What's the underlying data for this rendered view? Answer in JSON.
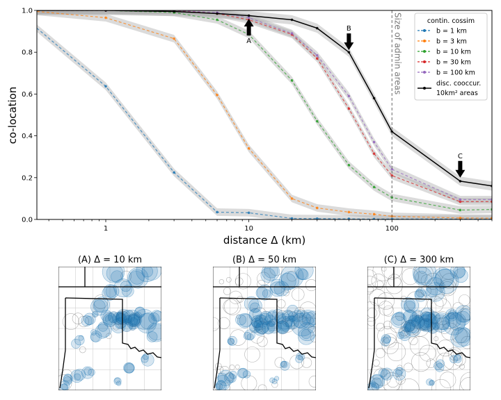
{
  "chart_data": [
    {
      "type": "line",
      "xlabel": "distance Δ (km)",
      "ylabel": "co-location",
      "x_scale": "log",
      "xlim": [
        0.33,
        500
      ],
      "ylim": [
        0,
        1
      ],
      "x_ticks": [
        1,
        10,
        100
      ],
      "x_tick_labels": [
        "1",
        "10",
        "100"
      ],
      "y_ticks": [
        0,
        0.2,
        0.4,
        0.6,
        0.8,
        1.0
      ],
      "y_tick_labels": [
        "0.0",
        "0.2",
        "0.4",
        "0.6",
        "0.8",
        "1.0"
      ],
      "grid": false,
      "legend_title": "contin. cossim",
      "legend_position": "top-right",
      "vline": {
        "x": 100,
        "label": "Size of admin areas"
      },
      "series": [
        {
          "name": "b = 1 km",
          "color": "#1f77b4",
          "style": "dashed",
          "x": [
            0.33,
            1,
            3,
            6,
            10,
            20,
            30,
            50,
            75,
            100,
            300,
            500
          ],
          "y": [
            0.915,
            0.637,
            0.225,
            0.035,
            0.032,
            0.005,
            0.004,
            0.003,
            0.002,
            0.002,
            0.002,
            0.002
          ]
        },
        {
          "name": "b = 3 km",
          "color": "#ff7f0e",
          "style": "dashed",
          "x": [
            0.33,
            1,
            3,
            6,
            10,
            20,
            30,
            50,
            75,
            100,
            300,
            500
          ],
          "y": [
            0.995,
            0.965,
            0.865,
            0.595,
            0.34,
            0.1,
            0.055,
            0.035,
            0.025,
            0.015,
            0.007,
            0.006
          ]
        },
        {
          "name": "b = 10 km",
          "color": "#2ca02c",
          "style": "dashed",
          "x": [
            0.33,
            1,
            3,
            6,
            10,
            20,
            30,
            50,
            75,
            100,
            300,
            500
          ],
          "y": [
            1.0,
            1.0,
            0.99,
            0.955,
            0.885,
            0.665,
            0.47,
            0.26,
            0.155,
            0.105,
            0.045,
            0.048
          ]
        },
        {
          "name": "b = 30 km",
          "color": "#d62728",
          "style": "dashed",
          "x": [
            0.33,
            1,
            3,
            6,
            10,
            20,
            30,
            50,
            75,
            100,
            300,
            500
          ],
          "y": [
            1.0,
            1.0,
            1.0,
            0.985,
            0.955,
            0.885,
            0.77,
            0.53,
            0.315,
            0.21,
            0.085,
            0.085
          ]
        },
        {
          "name": "b = 100 km",
          "color": "#9467bd",
          "style": "dashed",
          "x": [
            0.33,
            1,
            3,
            6,
            10,
            20,
            30,
            50,
            75,
            100,
            300,
            500
          ],
          "y": [
            1.0,
            1.0,
            1.0,
            0.99,
            0.965,
            0.89,
            0.785,
            0.59,
            0.37,
            0.24,
            0.095,
            0.095
          ]
        },
        {
          "name": "disc. cooccur. 10km² areas",
          "color": "#000000",
          "style": "solid",
          "x": [
            0.33,
            1,
            3,
            6,
            10,
            20,
            30,
            50,
            75,
            100,
            300,
            500
          ],
          "y": [
            1.0,
            1.0,
            0.995,
            0.985,
            0.975,
            0.955,
            0.915,
            0.8,
            0.58,
            0.42,
            0.183,
            0.16
          ]
        }
      ],
      "annotations": [
        {
          "label": "A",
          "x": 10,
          "y": 0.93,
          "direction": "up"
        },
        {
          "label": "B",
          "x": 50,
          "y": 0.85,
          "direction": "down"
        },
        {
          "label": "C",
          "x": 300,
          "y": 0.24,
          "direction": "down"
        }
      ]
    },
    {
      "type": "map",
      "panels": [
        {
          "title": "(A) Δ = 10 km"
        },
        {
          "title": "(B) Δ = 50 km"
        },
        {
          "title": "(C) Δ = 300 km"
        }
      ]
    }
  ],
  "legend": {
    "title": "contin. cossim",
    "entries": [
      "b = 1 km",
      "b = 3 km",
      "b = 10 km",
      "b = 30 km",
      "b = 100 km"
    ],
    "disc_line1": "disc. cooccur.",
    "disc_line2": "10km² areas"
  }
}
